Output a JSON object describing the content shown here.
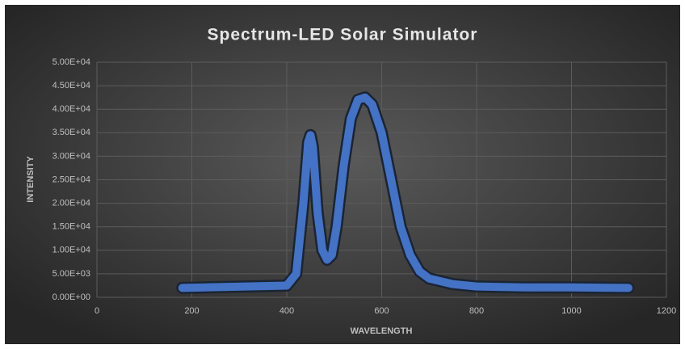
{
  "chart_data": {
    "type": "line",
    "title": "Spectrum-LED Solar Simulator",
    "x_label": "WAVELENGTH",
    "y_label": "INTENSITY",
    "series": [
      {
        "color": "#4472c4",
        "x": [
          180,
          400,
          420,
          435,
          445,
          450,
          455,
          465,
          475,
          485,
          495,
          505,
          520,
          535,
          550,
          565,
          580,
          600,
          620,
          640,
          660,
          680,
          700,
          750,
          800,
          900,
          1000,
          1120
        ],
        "values": [
          2000,
          2500,
          5000,
          20000,
          33000,
          34500,
          32000,
          18000,
          10000,
          8000,
          9000,
          15000,
          28000,
          38000,
          42000,
          42500,
          41000,
          35000,
          25000,
          15000,
          9000,
          5500,
          4000,
          2800,
          2300,
          2100,
          2100,
          2000
        ]
      }
    ],
    "xlim": [
      0,
      1200
    ],
    "xticks": [
      0,
      200,
      400,
      600,
      800,
      1000,
      1200
    ],
    "ylim": [
      0,
      50000
    ],
    "yticks": [
      {
        "value": 0,
        "label": "0.00E+00"
      },
      {
        "value": 5000,
        "label": "5.00E+03"
      },
      {
        "value": 10000,
        "label": "1.00E+04"
      },
      {
        "value": 15000,
        "label": "1.50E+04"
      },
      {
        "value": 20000,
        "label": "2.00E+04"
      },
      {
        "value": 25000,
        "label": "2.50E+04"
      },
      {
        "value": 30000,
        "label": "3.00E+04"
      },
      {
        "value": 35000,
        "label": "3.50E+04"
      },
      {
        "value": 40000,
        "label": "4.00E+04"
      },
      {
        "value": 45000,
        "label": "4.50E+04"
      },
      {
        "value": 50000,
        "label": "5.00E+04"
      }
    ],
    "grid": true
  }
}
